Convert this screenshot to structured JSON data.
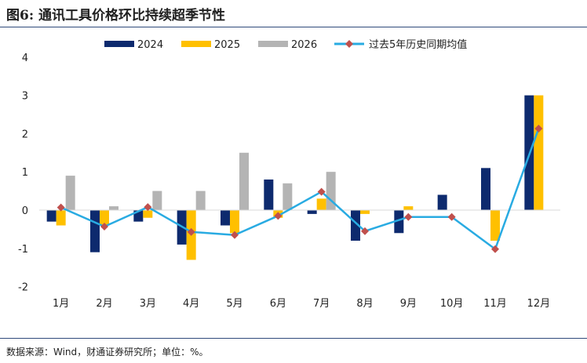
{
  "title": "图6: 通讯工具价格环比持续超季节性",
  "source": "数据来源：Wind，财通证券研究所；单位：%。",
  "chart_data": {
    "type": "bar",
    "categories": [
      "1月",
      "2月",
      "3月",
      "4月",
      "5月",
      "6月",
      "7月",
      "8月",
      "9月",
      "10月",
      "11月",
      "12月"
    ],
    "ylim": [
      -2,
      4
    ],
    "yticks": [
      -2,
      -1,
      0,
      1,
      2,
      3,
      4
    ],
    "ytick_labels": [
      "-2",
      "-1",
      "0",
      "1",
      "2",
      "3",
      "4"
    ],
    "legend_position": "top",
    "grid": false,
    "series": [
      {
        "name": "2024",
        "type": "bar",
        "color": "#0d2a6e",
        "values": [
          -0.3,
          -1.1,
          -0.3,
          -0.9,
          -0.4,
          0.8,
          -0.1,
          -0.8,
          -0.6,
          0.4,
          1.1,
          3.0
        ]
      },
      {
        "name": "2025",
        "type": "bar",
        "color": "#ffc000",
        "values": [
          -0.4,
          -0.4,
          -0.2,
          -1.3,
          -0.6,
          -0.2,
          0.3,
          -0.1,
          0.1,
          0.0,
          -0.8,
          3.0
        ]
      },
      {
        "name": "2026",
        "type": "bar",
        "color": "#b4b4b4",
        "values": [
          0.9,
          0.1,
          0.5,
          0.5,
          1.5,
          0.7,
          1.0,
          null,
          null,
          null,
          null,
          null
        ]
      },
      {
        "name": "过去5年历史同期均值",
        "type": "line",
        "color": "#29abe2",
        "marker_color": "#c0504d",
        "values": [
          0.07,
          -0.43,
          0.08,
          -0.57,
          -0.65,
          -0.15,
          0.48,
          -0.55,
          -0.18,
          -0.18,
          -1.02,
          2.13
        ]
      }
    ]
  }
}
